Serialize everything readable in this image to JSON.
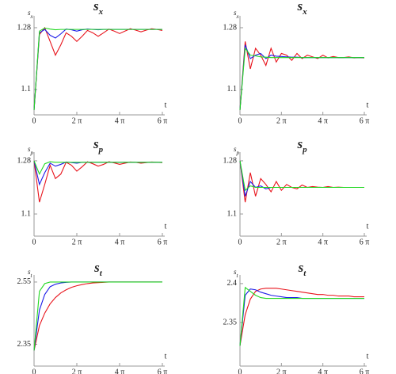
{
  "chart_data": [
    {
      "type": "line",
      "title": {
        "text": "s",
        "subscript": "x"
      },
      "y_label": {
        "text": "s",
        "subscript": "x"
      },
      "x_label": "t",
      "x": [
        0,
        0.79,
        1.57,
        2.36,
        3.14,
        3.93,
        4.71,
        5.5,
        6.28,
        7.07,
        7.85,
        8.64,
        9.42,
        10.21,
        11,
        11.78,
        12.57,
        13.35,
        14.14,
        14.92,
        15.71,
        16.49,
        17.28,
        18.06,
        18.85
      ],
      "xlim": [
        0,
        18.85
      ],
      "xticks": [
        0,
        {
          "value": 6.283,
          "label": "2 π"
        },
        {
          "value": 12.566,
          "label": "4 π"
        },
        {
          "value": 18.85,
          "label": "6 π"
        }
      ],
      "ylim": [
        1.026,
        1.303
      ],
      "yticks": [
        1.1,
        1.28
      ],
      "series": [
        {
          "color": "#e8141c",
          "values": [
            1.04,
            1.26,
            1.28,
            1.24,
            1.2,
            1.23,
            1.265,
            1.255,
            1.24,
            1.255,
            1.272,
            1.265,
            1.255,
            1.265,
            1.276,
            1.27,
            1.263,
            1.27,
            1.277,
            1.273,
            1.268,
            1.273,
            1.277,
            1.275,
            1.272
          ]
        },
        {
          "color": "#1c1ce8",
          "values": [
            1.04,
            1.265,
            1.275,
            1.258,
            1.25,
            1.262,
            1.276,
            1.274,
            1.27,
            1.274,
            1.276,
            1.275,
            1.274,
            1.275,
            1.275,
            1.275,
            1.275,
            1.275,
            1.275,
            1.275,
            1.275,
            1.275,
            1.275,
            1.275,
            1.275
          ]
        },
        {
          "color": "#22d822",
          "values": [
            1.04,
            1.27,
            1.279,
            1.276,
            1.274,
            1.275,
            1.275,
            1.275,
            1.275,
            1.275,
            1.275,
            1.275,
            1.275,
            1.275,
            1.275,
            1.275,
            1.275,
            1.275,
            1.275,
            1.275,
            1.275,
            1.275,
            1.275,
            1.275,
            1.275
          ]
        }
      ]
    },
    {
      "type": "line",
      "title": {
        "text": "s",
        "subscript": "x"
      },
      "y_label": {
        "text": "s",
        "subscript": "x"
      },
      "x_label": "t",
      "x": [
        0,
        0.79,
        1.57,
        2.36,
        3.14,
        3.93,
        4.71,
        5.5,
        6.28,
        7.07,
        7.85,
        8.64,
        9.42,
        10.21,
        11,
        11.78,
        12.57,
        13.35,
        14.14,
        14.92,
        15.71,
        16.49,
        17.28,
        18.06,
        18.85
      ],
      "xlim": [
        0,
        18.85
      ],
      "xticks": [
        0,
        {
          "value": 6.283,
          "label": "2 π"
        },
        {
          "value": 12.566,
          "label": "4 π"
        },
        {
          "value": 18.85,
          "label": "6 π"
        }
      ],
      "ylim": [
        1.026,
        1.303
      ],
      "yticks": [
        1.1,
        1.28
      ],
      "series": [
        {
          "color": "#e8141c",
          "values": [
            1.04,
            1.24,
            1.16,
            1.22,
            1.2,
            1.17,
            1.22,
            1.18,
            1.205,
            1.2,
            1.185,
            1.205,
            1.19,
            1.2,
            1.195,
            1.19,
            1.2,
            1.192,
            1.196,
            1.193,
            1.193,
            1.195,
            1.192,
            1.193,
            1.192
          ]
        },
        {
          "color": "#1c1ce8",
          "values": [
            1.04,
            1.23,
            1.19,
            1.2,
            1.205,
            1.19,
            1.2,
            1.197,
            1.196,
            1.195,
            1.194,
            1.194,
            1.193,
            1.193,
            1.193,
            1.193,
            1.193,
            1.193,
            1.193,
            1.193,
            1.193,
            1.193,
            1.193,
            1.193,
            1.193
          ]
        },
        {
          "color": "#22d822",
          "values": [
            1.04,
            1.22,
            1.2,
            1.198,
            1.195,
            1.194,
            1.193,
            1.193,
            1.193,
            1.193,
            1.193,
            1.193,
            1.193,
            1.193,
            1.193,
            1.193,
            1.193,
            1.193,
            1.193,
            1.193,
            1.193,
            1.193,
            1.193,
            1.193,
            1.193
          ]
        }
      ]
    },
    {
      "type": "line",
      "title": {
        "text": "s",
        "subscript": "p"
      },
      "y_label": {
        "text": "s",
        "subscript": "p"
      },
      "x_label": "t",
      "x": [
        0,
        0.79,
        1.57,
        2.36,
        3.14,
        3.93,
        4.71,
        5.5,
        6.28,
        7.07,
        7.85,
        8.64,
        9.42,
        10.21,
        11,
        11.78,
        12.57,
        13.35,
        14.14,
        14.92,
        15.71,
        16.49,
        17.28,
        18.06,
        18.85
      ],
      "xlim": [
        0,
        18.85
      ],
      "xticks": [
        0,
        {
          "value": 6.283,
          "label": "2 π"
        },
        {
          "value": 12.566,
          "label": "4 π"
        },
        {
          "value": 18.85,
          "label": "6 π"
        }
      ],
      "ylim": [
        1.025,
        1.296
      ],
      "yticks": [
        1.1,
        1.28
      ],
      "series": [
        {
          "color": "#e8141c",
          "values": [
            1.28,
            1.14,
            1.2,
            1.265,
            1.22,
            1.235,
            1.275,
            1.265,
            1.245,
            1.26,
            1.277,
            1.27,
            1.262,
            1.268,
            1.277,
            1.273,
            1.268,
            1.272,
            1.276,
            1.275,
            1.272,
            1.274,
            1.276,
            1.275,
            1.274
          ]
        },
        {
          "color": "#1c1ce8",
          "values": [
            1.28,
            1.2,
            1.24,
            1.272,
            1.262,
            1.268,
            1.276,
            1.274,
            1.272,
            1.275,
            1.275,
            1.275,
            1.275,
            1.275,
            1.275,
            1.275,
            1.275,
            1.275,
            1.275,
            1.275,
            1.275,
            1.275,
            1.275,
            1.275,
            1.275
          ]
        },
        {
          "color": "#22d822",
          "values": [
            1.28,
            1.235,
            1.27,
            1.277,
            1.275,
            1.275,
            1.275,
            1.275,
            1.275,
            1.275,
            1.275,
            1.275,
            1.275,
            1.275,
            1.275,
            1.275,
            1.275,
            1.275,
            1.275,
            1.275,
            1.275,
            1.275,
            1.275,
            1.275,
            1.275
          ]
        }
      ]
    },
    {
      "type": "line",
      "title": {
        "text": "s",
        "subscript": "p"
      },
      "y_label": {
        "text": "s",
        "subscript": "p"
      },
      "x_label": "t",
      "x": [
        0,
        0.79,
        1.57,
        2.36,
        3.14,
        3.93,
        4.71,
        5.5,
        6.28,
        7.07,
        7.85,
        8.64,
        9.42,
        10.21,
        11,
        11.78,
        12.57,
        13.35,
        14.14,
        14.92,
        15.71,
        16.49,
        17.28,
        18.06,
        18.85
      ],
      "xlim": [
        0,
        18.85
      ],
      "xticks": [
        0,
        {
          "value": 6.283,
          "label": "2 π"
        },
        {
          "value": 12.566,
          "label": "4 π"
        },
        {
          "value": 18.85,
          "label": "6 π"
        }
      ],
      "ylim": [
        1.025,
        1.296
      ],
      "yticks": [
        1.1,
        1.28
      ],
      "series": [
        {
          "color": "#e8141c",
          "values": [
            1.28,
            1.14,
            1.24,
            1.16,
            1.22,
            1.2,
            1.175,
            1.21,
            1.18,
            1.2,
            1.19,
            1.185,
            1.198,
            1.19,
            1.193,
            1.191,
            1.19,
            1.193,
            1.19,
            1.191,
            1.19,
            1.19,
            1.19,
            1.19,
            1.19
          ]
        },
        {
          "color": "#1c1ce8",
          "values": [
            1.28,
            1.16,
            1.21,
            1.19,
            1.195,
            1.185,
            1.19,
            1.19,
            1.19,
            1.19,
            1.19,
            1.19,
            1.19,
            1.19,
            1.19,
            1.19,
            1.19,
            1.19,
            1.19,
            1.19,
            1.19,
            1.19,
            1.19,
            1.19,
            1.19
          ]
        },
        {
          "color": "#22d822",
          "values": [
            1.28,
            1.18,
            1.195,
            1.19,
            1.19,
            1.19,
            1.19,
            1.19,
            1.19,
            1.19,
            1.19,
            1.19,
            1.19,
            1.19,
            1.19,
            1.19,
            1.19,
            1.19,
            1.19,
            1.19,
            1.19,
            1.19,
            1.19,
            1.19,
            1.19
          ]
        }
      ]
    },
    {
      "type": "line",
      "title": {
        "text": "s",
        "subscript": "t"
      },
      "y_label": {
        "text": "s",
        "subscript": "t"
      },
      "x_label": "t",
      "x": [
        0,
        0.79,
        1.57,
        2.36,
        3.14,
        3.93,
        4.71,
        5.5,
        6.28,
        7.07,
        7.85,
        8.64,
        9.42,
        10.21,
        11,
        11.78,
        12.57,
        13.35,
        14.14,
        14.92,
        15.71,
        16.49,
        17.28,
        18.06,
        18.85
      ],
      "xlim": [
        0,
        18.85
      ],
      "xticks": [
        0,
        {
          "value": 6.283,
          "label": "2 π"
        },
        {
          "value": 12.566,
          "label": "4 π"
        },
        {
          "value": 18.85,
          "label": "6 π"
        }
      ],
      "ylim": [
        2.28,
        2.56
      ],
      "yticks": [
        2.35,
        2.55
      ],
      "series": [
        {
          "color": "#e8141c",
          "values": [
            2.33,
            2.41,
            2.45,
            2.48,
            2.5,
            2.515,
            2.525,
            2.533,
            2.538,
            2.542,
            2.545,
            2.547,
            2.548,
            2.549,
            2.55,
            2.55,
            2.55,
            2.55,
            2.55,
            2.55,
            2.55,
            2.55,
            2.55,
            2.55,
            2.55
          ]
        },
        {
          "color": "#1c1ce8",
          "values": [
            2.33,
            2.46,
            2.51,
            2.535,
            2.543,
            2.547,
            2.549,
            2.55,
            2.55,
            2.55,
            2.55,
            2.55,
            2.55,
            2.55,
            2.55,
            2.55,
            2.55,
            2.55,
            2.55,
            2.55,
            2.55,
            2.55,
            2.55,
            2.55,
            2.55
          ]
        },
        {
          "color": "#22d822",
          "values": [
            2.33,
            2.52,
            2.545,
            2.55,
            2.55,
            2.55,
            2.55,
            2.55,
            2.55,
            2.55,
            2.55,
            2.55,
            2.55,
            2.55,
            2.55,
            2.55,
            2.55,
            2.55,
            2.55,
            2.55,
            2.55,
            2.55,
            2.55,
            2.55,
            2.55
          ]
        }
      ]
    },
    {
      "type": "line",
      "title": {
        "text": "s",
        "subscript": "t"
      },
      "y_label": {
        "text": "s",
        "subscript": "t"
      },
      "x_label": "t",
      "x": [
        0,
        0.79,
        1.57,
        2.36,
        3.14,
        3.93,
        4.71,
        5.5,
        6.28,
        7.07,
        7.85,
        8.64,
        9.42,
        10.21,
        11,
        11.78,
        12.57,
        13.35,
        14.14,
        14.92,
        15.71,
        16.49,
        17.28,
        18.06,
        18.85
      ],
      "xlim": [
        0,
        18.85
      ],
      "xticks": [
        0,
        {
          "value": 6.283,
          "label": "2 π"
        },
        {
          "value": 12.566,
          "label": "4 π"
        },
        {
          "value": 18.85,
          "label": "6 π"
        }
      ],
      "ylim": [
        2.294,
        2.406
      ],
      "yticks": [
        2.35,
        2.4
      ],
      "series": [
        {
          "color": "#e8141c",
          "values": [
            2.32,
            2.36,
            2.38,
            2.39,
            2.393,
            2.394,
            2.394,
            2.394,
            2.393,
            2.392,
            2.391,
            2.39,
            2.389,
            2.388,
            2.387,
            2.386,
            2.386,
            2.385,
            2.385,
            2.384,
            2.384,
            2.384,
            2.383,
            2.383,
            2.383
          ]
        },
        {
          "color": "#1c1ce8",
          "values": [
            2.32,
            2.385,
            2.393,
            2.392,
            2.389,
            2.387,
            2.385,
            2.384,
            2.383,
            2.382,
            2.382,
            2.382,
            2.381,
            2.381,
            2.381,
            2.381,
            2.381,
            2.381,
            2.381,
            2.381,
            2.381,
            2.381,
            2.381,
            2.381,
            2.381
          ]
        },
        {
          "color": "#22d822",
          "values": [
            2.32,
            2.395,
            2.39,
            2.385,
            2.382,
            2.381,
            2.381,
            2.381,
            2.381,
            2.381,
            2.381,
            2.381,
            2.381,
            2.381,
            2.381,
            2.381,
            2.381,
            2.381,
            2.381,
            2.381,
            2.381,
            2.381,
            2.381,
            2.381,
            2.381
          ]
        }
      ]
    }
  ]
}
